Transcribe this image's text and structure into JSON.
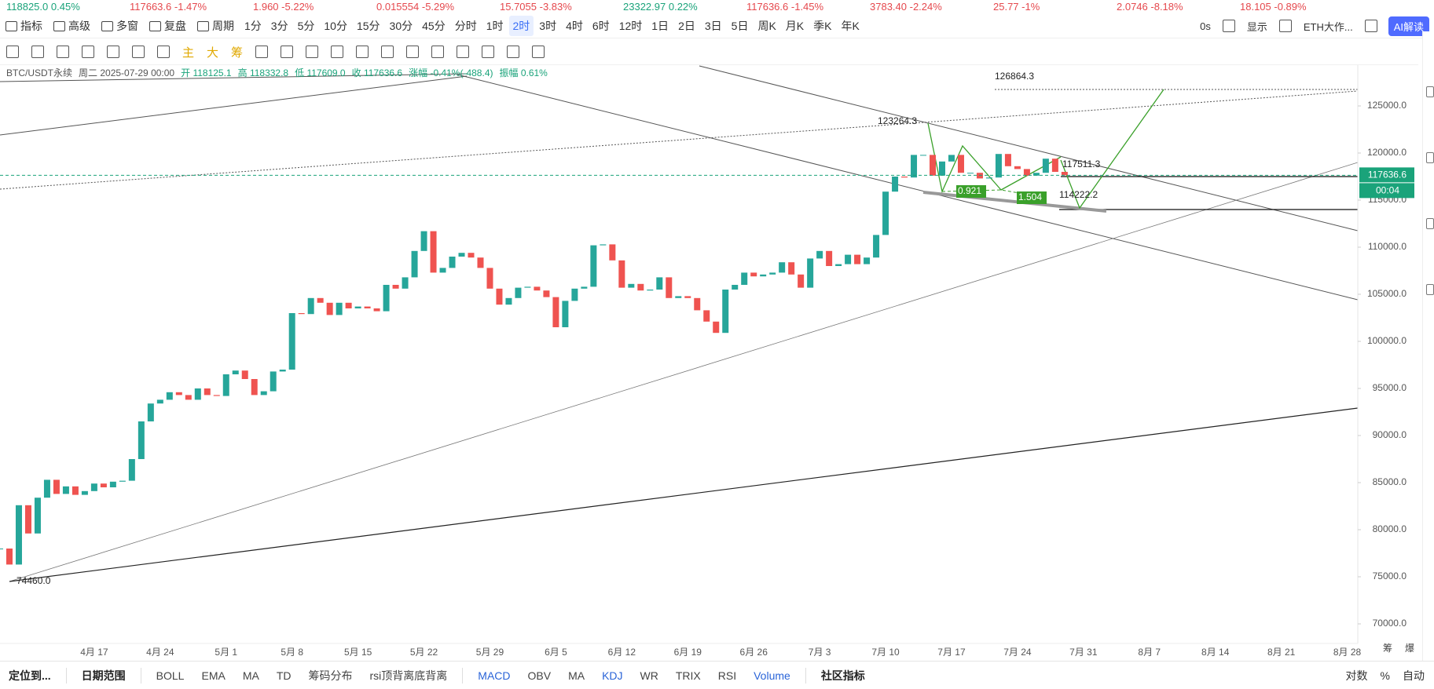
{
  "ticker": [
    {
      "price": "118825.0",
      "change": "0.45%"
    },
    {
      "price": "117663.6",
      "change": "-1.47%"
    },
    {
      "price": "1.960",
      "change": "-5.22%"
    },
    {
      "price": "0.015554",
      "change": "-5.29%"
    },
    {
      "price": "15.7055",
      "change": "-3.83%"
    },
    {
      "price": "23322.97",
      "change": "0.22%"
    },
    {
      "price": "117636.6",
      "change": "-1.45%"
    },
    {
      "price": "3783.40",
      "change": "-2.24%"
    },
    {
      "price": "25.77",
      "change": "-1%"
    },
    {
      "price": "2.0746",
      "change": "-8.18%"
    },
    {
      "price": "18.105",
      "change": "-0.89%"
    }
  ],
  "toolbar": {
    "buttons": [
      "指标",
      "高级",
      "多窗",
      "复盘",
      "周期"
    ],
    "periods": [
      "1分",
      "3分",
      "5分",
      "10分",
      "15分",
      "30分",
      "45分",
      "分时",
      "1时",
      "2时",
      "3时",
      "4时",
      "6时",
      "12时",
      "1日",
      "2日",
      "3日",
      "5日",
      "周K",
      "月K",
      "季K",
      "年K"
    ],
    "selected_period": "2时",
    "right": [
      "0s",
      "显示",
      "ETH大作...",
      "AI解读"
    ]
  },
  "draw_tools": [
    "主",
    "大",
    "筹"
  ],
  "info": [
    "BTC/USDT永续",
    "周二 2025-07-29 00:00",
    "开 118125.1",
    "高 118332.8",
    "低 117609.0",
    "收 117636.6",
    "涨幅 -0.41%(-488.4)",
    "振幅 0.61%"
  ],
  "chart_data": {
    "type": "candlestick",
    "up_color": "#26a69a",
    "down_color": "#ef5350",
    "categories": [
      null,
      null,
      null,
      null,
      null,
      null,
      null,
      null,
      null,
      null,
      "4月 17",
      null,
      null,
      null,
      null,
      null,
      null,
      "4月 24",
      null,
      null,
      null,
      null,
      null,
      null,
      "5月 1",
      null,
      null,
      null,
      null,
      null,
      null,
      "5月 8",
      null,
      null,
      null,
      null,
      null,
      null,
      "5月 15",
      null,
      null,
      null,
      null,
      null,
      null,
      "5月 22",
      null,
      null,
      null,
      null,
      null,
      null,
      "5月 29",
      null,
      null,
      null,
      null,
      null,
      null,
      "6月 5",
      null,
      null,
      null,
      null,
      null,
      null,
      "6月 12",
      null,
      null,
      null,
      null,
      null,
      null,
      "6月 19",
      null,
      null,
      null,
      null,
      null,
      null,
      "6月 26",
      null,
      null,
      null,
      null,
      null,
      null,
      "7月 3",
      null,
      null,
      null,
      null,
      null,
      null,
      "7月 10",
      null,
      null,
      null,
      null,
      null,
      null,
      "7月 17",
      null,
      null,
      null,
      null,
      null,
      null,
      "7月 24",
      null,
      null,
      null,
      null,
      null,
      null,
      "7月 31",
      null,
      null,
      null,
      null,
      null,
      null,
      "8月 7",
      null,
      null,
      null,
      null,
      null,
      null,
      "8月 14",
      null,
      null,
      null,
      null,
      null,
      null,
      "8月 21",
      null,
      null,
      null,
      null,
      null,
      null,
      "8月 28"
    ],
    "values": [
      78000,
      76300,
      82600,
      79600,
      83400,
      85300,
      83800,
      84600,
      83700,
      84100,
      84900,
      84500,
      85100,
      85200,
      87500,
      91500,
      93400,
      93800,
      94600,
      94300,
      93800,
      95000,
      94300,
      94200,
      96500,
      96900,
      96000,
      94300,
      94700,
      96800,
      97000,
      103000,
      102900,
      104600,
      104100,
      102800,
      104100,
      103500,
      103700,
      103500,
      103200,
      106000,
      105600,
      106800,
      109600,
      111700,
      107300,
      107800,
      109000,
      109400,
      108900,
      107800,
      105600,
      103900,
      104600,
      105700,
      105800,
      105400,
      104700,
      101500,
      104300,
      105600,
      105800,
      110200,
      110300,
      108600,
      105700,
      106100,
      105400,
      105500,
      106800,
      104600,
      104800,
      104600,
      103300,
      102100,
      100900,
      105500,
      106000,
      107300,
      106900,
      107100,
      107300,
      108400,
      107100,
      105700,
      108800,
      109600,
      108000,
      108200,
      109200,
      108200,
      108900,
      111300,
      115900,
      117500,
      117400,
      119800,
      119800,
      117600,
      119100,
      119800,
      117900,
      117900,
      117300,
      117400,
      119900,
      118600,
      118300,
      117600,
      117900,
      119400,
      118000,
      117636.6,
      null,
      null,
      null,
      null,
      null,
      null,
      null,
      null,
      null,
      null,
      null,
      null,
      null,
      null,
      null,
      null,
      null,
      null,
      null,
      null,
      null,
      null,
      null,
      null,
      null,
      null,
      null,
      null,
      null,
      null
    ],
    "ylim": [
      67917,
      129417
    ],
    "yticks": [
      {
        "value": 70000,
        "label": "70000.0"
      },
      {
        "value": 75000,
        "label": "75000.0"
      },
      {
        "value": 80000,
        "label": "80000.0"
      },
      {
        "value": 85000,
        "label": "85000.0"
      },
      {
        "value": 90000,
        "label": "90000.0"
      },
      {
        "value": 95000,
        "label": "95000.0"
      },
      {
        "value": 100000,
        "label": "100000.0"
      },
      {
        "value": 105000,
        "label": "105000.0"
      },
      {
        "value": 110000,
        "label": "110000.0"
      },
      {
        "value": 115000,
        "label": "115000.0"
      },
      {
        "value": 120000,
        "label": "120000.0"
      },
      {
        "value": 125000,
        "label": "125000.0"
      }
    ],
    "current_price": 117636.6,
    "countdown": "00:04",
    "annotations": [
      "123264.3",
      "74460.0",
      "117511.3",
      "114222.2",
      "126864.3",
      "0.921",
      "1.504"
    ]
  },
  "axis_corner": [
    "筹",
    "爆"
  ],
  "bottom": {
    "left": [
      "定位到...",
      "日期范围"
    ],
    "main_indicators": [
      "BOLL",
      "EMA",
      "MA",
      "TD",
      "筹码分布",
      "rsi顶背离底背离"
    ],
    "sub_indicators": [
      "MACD",
      "OBV",
      "MA",
      "KDJ",
      "WR",
      "TRIX",
      "RSI",
      "Volume"
    ],
    "community": "社区指标",
    "right": [
      "对数",
      "%",
      "自动"
    ]
  }
}
